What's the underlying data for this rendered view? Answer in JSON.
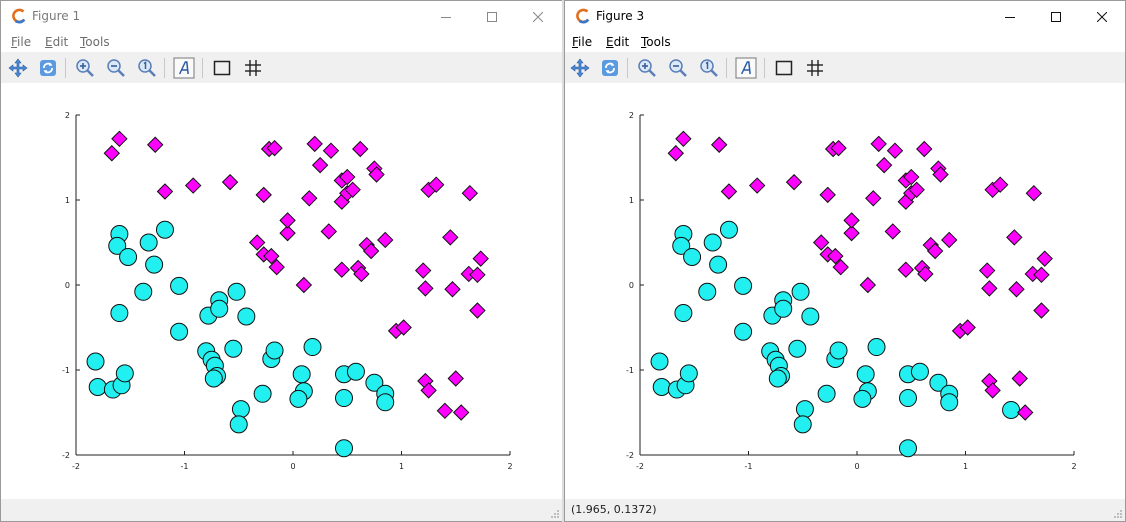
{
  "figures": [
    {
      "id": "fig1",
      "title": "Figure 1",
      "active": false,
      "menu": [
        {
          "accel": "F",
          "rest": "ile"
        },
        {
          "accel": "E",
          "rest": "dit"
        },
        {
          "accel": "T",
          "rest": "ools"
        }
      ],
      "toolbar_icons": [
        "pan-icon",
        "rotate-icon",
        "zoom-in-icon",
        "zoom-out-icon",
        "zoom-reset-icon",
        "text-icon",
        "box-icon",
        "grid-icon"
      ],
      "status": "",
      "chart_data": {
        "type": "scatter",
        "xlim": [
          -2,
          2
        ],
        "ylim": [
          -2,
          2
        ],
        "xticks": [
          "-2",
          "-1",
          "0",
          "1",
          "2"
        ],
        "yticks": [
          "-2",
          "-1",
          "0",
          "1",
          "2"
        ],
        "grid": false,
        "series": [
          {
            "marker": "circle",
            "color": "#22f0f0",
            "points": [
              [
                -1.6,
                0.6
              ],
              [
                -1.62,
                0.46
              ],
              [
                -1.33,
                0.5
              ],
              [
                -1.18,
                0.65
              ],
              [
                -1.52,
                0.33
              ],
              [
                -1.28,
                0.24
              ],
              [
                -1.38,
                -0.08
              ],
              [
                -1.05,
                -0.01
              ],
              [
                -1.6,
                -0.33
              ],
              [
                -1.05,
                -0.55
              ],
              [
                -0.78,
                -0.36
              ],
              [
                -0.68,
                -0.18
              ],
              [
                -0.68,
                -0.28
              ],
              [
                -0.52,
                -0.08
              ],
              [
                -0.43,
                -0.37
              ],
              [
                -1.82,
                -0.9
              ],
              [
                -1.8,
                -1.2
              ],
              [
                -1.66,
                -1.23
              ],
              [
                -1.58,
                -1.18
              ],
              [
                -1.55,
                -1.04
              ],
              [
                -0.8,
                -0.78
              ],
              [
                -0.75,
                -0.88
              ],
              [
                -0.72,
                -0.95
              ],
              [
                -0.7,
                -1.07
              ],
              [
                -0.73,
                -1.1
              ],
              [
                -0.55,
                -0.75
              ],
              [
                -0.2,
                -0.87
              ],
              [
                -0.17,
                -0.77
              ],
              [
                -0.28,
                -1.28
              ],
              [
                -0.48,
                -1.46
              ],
              [
                -0.5,
                -1.64
              ],
              [
                0.08,
                -1.05
              ],
              [
                0.1,
                -1.25
              ],
              [
                0.05,
                -1.34
              ],
              [
                0.18,
                -0.73
              ],
              [
                0.47,
                -1.05
              ],
              [
                0.58,
                -1.02
              ],
              [
                0.47,
                -1.33
              ],
              [
                0.75,
                -1.15
              ],
              [
                0.85,
                -1.28
              ],
              [
                0.85,
                -1.38
              ],
              [
                0.47,
                -1.92
              ]
            ]
          },
          {
            "marker": "diamond",
            "color": "#ff00ff",
            "points": [
              [
                -1.67,
                1.55
              ],
              [
                -1.6,
                1.72
              ],
              [
                -1.27,
                1.65
              ],
              [
                -1.18,
                1.1
              ],
              [
                -0.92,
                1.17
              ],
              [
                -0.58,
                1.21
              ],
              [
                -0.27,
                1.06
              ],
              [
                -0.22,
                1.6
              ],
              [
                -0.17,
                1.61
              ],
              [
                0.2,
                1.66
              ],
              [
                0.35,
                1.58
              ],
              [
                0.25,
                1.41
              ],
              [
                0.62,
                1.6
              ],
              [
                0.75,
                1.37
              ],
              [
                0.77,
                1.3
              ],
              [
                0.15,
                1.02
              ],
              [
                0.45,
                0.98
              ],
              [
                0.5,
                1.08
              ],
              [
                0.55,
                1.12
              ],
              [
                0.45,
                1.23
              ],
              [
                0.5,
                1.27
              ],
              [
                -0.33,
                0.5
              ],
              [
                -0.27,
                0.36
              ],
              [
                -0.2,
                0.34
              ],
              [
                -0.15,
                0.21
              ],
              [
                -0.05,
                0.61
              ],
              [
                -0.05,
                0.76
              ],
              [
                0.33,
                0.63
              ],
              [
                0.1,
                0.0
              ],
              [
                0.45,
                0.18
              ],
              [
                0.6,
                0.2
              ],
              [
                0.63,
                0.13
              ],
              [
                0.68,
                0.47
              ],
              [
                0.72,
                0.4
              ],
              [
                0.85,
                0.53
              ],
              [
                0.95,
                -0.54
              ],
              [
                1.02,
                -0.5
              ],
              [
                1.2,
                0.17
              ],
              [
                1.22,
                -0.04
              ],
              [
                1.25,
                1.12
              ],
              [
                1.32,
                1.18
              ],
              [
                1.45,
                0.56
              ],
              [
                1.47,
                -0.05
              ],
              [
                1.63,
                1.08
              ],
              [
                1.62,
                0.13
              ],
              [
                1.7,
                0.12
              ],
              [
                1.73,
                0.31
              ],
              [
                1.7,
                -0.3
              ],
              [
                1.22,
                -1.13
              ],
              [
                1.25,
                -1.24
              ],
              [
                1.5,
                -1.1
              ],
              [
                1.4,
                -1.48
              ],
              [
                1.55,
                -1.5
              ]
            ]
          }
        ]
      }
    },
    {
      "id": "fig3",
      "title": "Figure 3",
      "active": true,
      "menu": [
        {
          "accel": "F",
          "rest": "ile"
        },
        {
          "accel": "E",
          "rest": "dit"
        },
        {
          "accel": "T",
          "rest": "ools"
        }
      ],
      "toolbar_icons": [
        "pan-icon",
        "rotate-icon",
        "zoom-in-icon",
        "zoom-out-icon",
        "zoom-reset-icon",
        "text-icon",
        "box-icon",
        "grid-icon"
      ],
      "status": "(1.965, 0.1372)",
      "chart_data": {
        "type": "scatter",
        "xlim": [
          -2,
          2
        ],
        "ylim": [
          -2,
          2
        ],
        "xticks": [
          "-2",
          "-1",
          "0",
          "1",
          "2"
        ],
        "yticks": [
          "-2",
          "-1",
          "0",
          "1",
          "2"
        ],
        "grid": false,
        "series": [
          {
            "marker": "circle",
            "color": "#22f0f0",
            "points": [
              [
                -1.6,
                0.6
              ],
              [
                -1.62,
                0.46
              ],
              [
                -1.33,
                0.5
              ],
              [
                -1.18,
                0.65
              ],
              [
                -1.52,
                0.33
              ],
              [
                -1.28,
                0.24
              ],
              [
                -1.38,
                -0.08
              ],
              [
                -1.05,
                -0.01
              ],
              [
                -1.6,
                -0.33
              ],
              [
                -1.05,
                -0.55
              ],
              [
                -0.78,
                -0.36
              ],
              [
                -0.68,
                -0.18
              ],
              [
                -0.68,
                -0.28
              ],
              [
                -0.52,
                -0.08
              ],
              [
                -0.43,
                -0.37
              ],
              [
                -1.82,
                -0.9
              ],
              [
                -1.8,
                -1.2
              ],
              [
                -1.66,
                -1.23
              ],
              [
                -1.58,
                -1.18
              ],
              [
                -1.55,
                -1.04
              ],
              [
                -0.8,
                -0.78
              ],
              [
                -0.75,
                -0.88
              ],
              [
                -0.72,
                -0.95
              ],
              [
                -0.7,
                -1.07
              ],
              [
                -0.73,
                -1.1
              ],
              [
                -0.55,
                -0.75
              ],
              [
                -0.2,
                -0.87
              ],
              [
                -0.17,
                -0.77
              ],
              [
                -0.28,
                -1.28
              ],
              [
                -0.48,
                -1.46
              ],
              [
                -0.5,
                -1.64
              ],
              [
                0.08,
                -1.05
              ],
              [
                0.1,
                -1.25
              ],
              [
                0.05,
                -1.34
              ],
              [
                0.18,
                -0.73
              ],
              [
                0.47,
                -1.05
              ],
              [
                0.58,
                -1.02
              ],
              [
                0.47,
                -1.33
              ],
              [
                0.75,
                -1.15
              ],
              [
                0.85,
                -1.28
              ],
              [
                0.85,
                -1.38
              ],
              [
                0.47,
                -1.92
              ],
              [
                1.42,
                -1.47
              ]
            ]
          },
          {
            "marker": "diamond",
            "color": "#ff00ff",
            "points": [
              [
                -1.67,
                1.55
              ],
              [
                -1.6,
                1.72
              ],
              [
                -1.27,
                1.65
              ],
              [
                -1.18,
                1.1
              ],
              [
                -0.92,
                1.17
              ],
              [
                -0.58,
                1.21
              ],
              [
                -0.27,
                1.06
              ],
              [
                -0.22,
                1.6
              ],
              [
                -0.17,
                1.61
              ],
              [
                0.2,
                1.66
              ],
              [
                0.35,
                1.58
              ],
              [
                0.25,
                1.41
              ],
              [
                0.62,
                1.6
              ],
              [
                0.75,
                1.37
              ],
              [
                0.77,
                1.3
              ],
              [
                0.15,
                1.02
              ],
              [
                0.45,
                0.98
              ],
              [
                0.5,
                1.08
              ],
              [
                0.55,
                1.12
              ],
              [
                0.45,
                1.23
              ],
              [
                0.5,
                1.27
              ],
              [
                -0.33,
                0.5
              ],
              [
                -0.27,
                0.36
              ],
              [
                -0.2,
                0.34
              ],
              [
                -0.15,
                0.21
              ],
              [
                -0.05,
                0.61
              ],
              [
                -0.05,
                0.76
              ],
              [
                0.33,
                0.63
              ],
              [
                0.1,
                0.0
              ],
              [
                0.45,
                0.18
              ],
              [
                0.6,
                0.2
              ],
              [
                0.63,
                0.13
              ],
              [
                0.68,
                0.47
              ],
              [
                0.72,
                0.4
              ],
              [
                0.85,
                0.53
              ],
              [
                0.95,
                -0.54
              ],
              [
                1.02,
                -0.5
              ],
              [
                1.2,
                0.17
              ],
              [
                1.22,
                -0.04
              ],
              [
                1.25,
                1.12
              ],
              [
                1.32,
                1.18
              ],
              [
                1.45,
                0.56
              ],
              [
                1.47,
                -0.05
              ],
              [
                1.63,
                1.08
              ],
              [
                1.62,
                0.13
              ],
              [
                1.7,
                0.12
              ],
              [
                1.73,
                0.31
              ],
              [
                1.7,
                -0.3
              ],
              [
                1.22,
                -1.13
              ],
              [
                1.25,
                -1.24
              ],
              [
                1.5,
                -1.1
              ],
              [
                1.55,
                -1.5
              ]
            ]
          }
        ]
      }
    }
  ]
}
